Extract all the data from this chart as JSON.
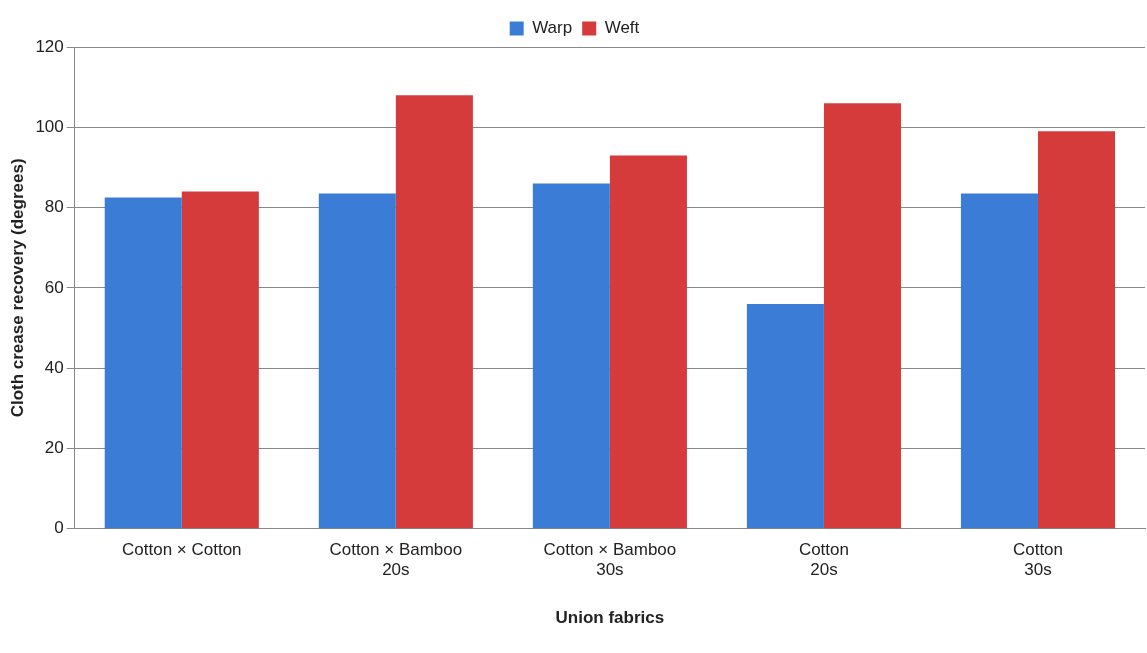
{
  "chart_data": {
    "type": "bar",
    "xlabel": "Union fabrics",
    "ylabel": "Cloth crease recovery (degrees)",
    "categories": [
      "Cotton × Cotton",
      "Cotton × Bamboo\n20s",
      "Cotton × Bamboo\n30s",
      "Cotton\n20s",
      "Cotton\n30s"
    ],
    "series": [
      {
        "name": "Warp",
        "color": "#3b7dd6",
        "values": [
          82.5,
          83.5,
          86,
          56,
          83.5
        ]
      },
      {
        "name": "Weft",
        "color": "#d63b3b",
        "values": [
          84,
          108,
          93,
          106,
          99
        ]
      }
    ],
    "ylim": [
      0,
      120
    ],
    "yticks": [
      0,
      20,
      40,
      60,
      80,
      100,
      120
    ],
    "grid": "y",
    "legend": "top"
  }
}
